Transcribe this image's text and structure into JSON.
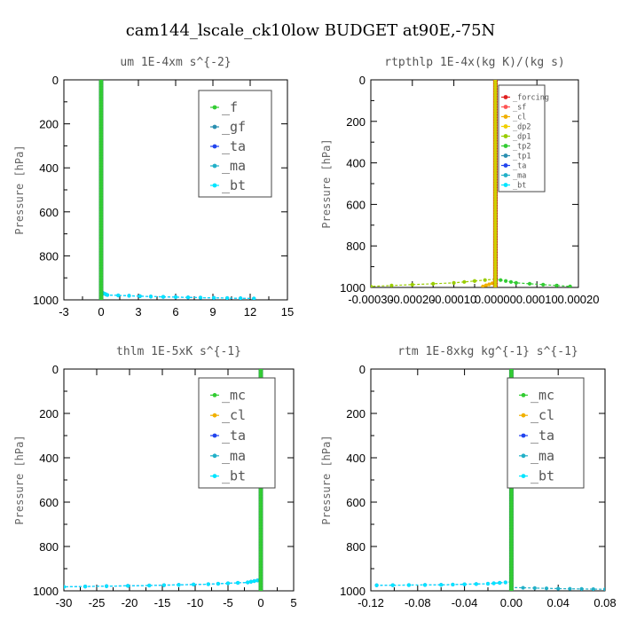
{
  "figure_title": "cam144_lscale_ck10low  BUDGET at90E,-75N",
  "colors": {
    "_f": "#33cc33",
    "_gf": "#2a8fb0",
    "_ta": "#2244ee",
    "_ma": "#22b0c8",
    "_bt": "#00e5ff",
    "_forcing": "#e02020",
    "_sf": "#ff5555",
    "_cl": "#f0b000",
    "_dp2": "#f0d000",
    "_dp1": "#99cc00",
    "_tp2": "#33cc33",
    "_tp1": "#2a8fb0",
    "_mc": "#33cc33",
    "bold_line": "#2f9c4e",
    "bold_line_red": "#b00000"
  },
  "chart_data": [
    {
      "type": "line",
      "title": "um  1E-4xm s^{-2}",
      "ylabel": "Pressure [hPa]",
      "xlim": [
        -3,
        15
      ],
      "ylim": [
        1000,
        0
      ],
      "y_reversed": true,
      "x_ticks": [
        "-3",
        "0",
        "3",
        "6",
        "9",
        "12",
        "15"
      ],
      "y_ticks": [
        "0",
        "200",
        "400",
        "600",
        "800",
        "1000"
      ],
      "legend": {
        "position": "top-right",
        "entries": [
          "_f",
          "_gf",
          "_ta",
          "_ma",
          "_bt"
        ]
      },
      "series": [
        {
          "name": "_f",
          "profile": [
            [
              0,
              0
            ],
            [
              0,
              1000
            ]
          ]
        },
        {
          "name": "_gf",
          "profile": [
            [
              0,
              0
            ],
            [
              0,
              1000
            ]
          ]
        },
        {
          "name": "_ta",
          "profile": [
            [
              0,
              0
            ],
            [
              0,
              965
            ],
            [
              0.5,
              978
            ],
            [
              4,
              985
            ],
            [
              8,
              990
            ],
            [
              12.3,
              994
            ]
          ]
        },
        {
          "name": "_ma",
          "profile": [
            [
              0,
              0
            ],
            [
              0,
              1000
            ]
          ]
        },
        {
          "name": "_bt",
          "profile": [
            [
              0,
              0
            ],
            [
              0,
              965
            ],
            [
              0.5,
              978
            ],
            [
              4,
              985
            ],
            [
              8,
              990
            ],
            [
              12.3,
              994
            ]
          ]
        }
      ]
    },
    {
      "type": "line",
      "title": "rtpthlp  1E-4x(kg K)/(kg s)",
      "ylabel": "Pressure [hPa]",
      "xlim": [
        -0.0003,
        0.0002
      ],
      "ylim": [
        1000,
        0
      ],
      "y_reversed": true,
      "x_ticks": [
        "-0.00030",
        "-0.00020",
        "-0.00010",
        "0.00000",
        "0.00010",
        "0.00020"
      ],
      "y_ticks": [
        "0",
        "200",
        "400",
        "600",
        "800",
        "1000"
      ],
      "legend": {
        "position": "top-right",
        "entries": [
          "_forcing",
          "_sf",
          "_cl",
          "_dp2",
          "_dp1",
          "_tp2",
          "_tp1",
          "_ta",
          "_ma",
          "_bt"
        ]
      },
      "series": [
        {
          "name": "_forcing",
          "profile": [
            [
              0,
              0
            ],
            [
              0,
              1000
            ]
          ]
        },
        {
          "name": "_sf",
          "profile": [
            [
              0,
              0
            ],
            [
              0,
              1000
            ]
          ]
        },
        {
          "name": "_cl",
          "profile": [
            [
              0,
              0
            ],
            [
              0,
              975
            ],
            [
              -3e-05,
              995
            ]
          ]
        },
        {
          "name": "_dp2",
          "profile": [
            [
              0,
              0
            ],
            [
              0,
              1000
            ]
          ]
        },
        {
          "name": "_dp1",
          "profile": [
            [
              0,
              0
            ],
            [
              0,
              960
            ],
            [
              -0.0001,
              978
            ],
            [
              -0.0003,
              995
            ]
          ]
        },
        {
          "name": "_tp2",
          "profile": [
            [
              0,
              0
            ],
            [
              0,
              960
            ],
            [
              5e-05,
              978
            ],
            [
              0.00018,
              995
            ]
          ]
        },
        {
          "name": "_tp1",
          "profile": [
            [
              0,
              0
            ],
            [
              0,
              1000
            ]
          ]
        },
        {
          "name": "_ta",
          "profile": [
            [
              0,
              0
            ],
            [
              0,
              1000
            ]
          ]
        },
        {
          "name": "_ma",
          "profile": [
            [
              0,
              0
            ],
            [
              0,
              1000
            ]
          ]
        },
        {
          "name": "_bt",
          "profile": [
            [
              0,
              0
            ],
            [
              0,
              1000
            ]
          ]
        }
      ]
    },
    {
      "type": "line",
      "title": "thlm  1E-5xK s^{-1}",
      "ylabel": "Pressure [hPa]",
      "xlim": [
        -30,
        5
      ],
      "ylim": [
        1000,
        0
      ],
      "y_reversed": true,
      "x_ticks": [
        "-30",
        "-25",
        "-20",
        "-15",
        "-10",
        "-5",
        "0",
        "5"
      ],
      "y_ticks": [
        "0",
        "200",
        "400",
        "600",
        "800",
        "1000"
      ],
      "legend": {
        "position": "top-right",
        "entries": [
          "_mc",
          "_cl",
          "_ta",
          "_ma",
          "_bt"
        ]
      },
      "series": [
        {
          "name": "_mc",
          "profile": [
            [
              0,
              0
            ],
            [
              0,
              1000
            ]
          ]
        },
        {
          "name": "_cl",
          "profile": [
            [
              0,
              0
            ],
            [
              0,
              1000
            ]
          ]
        },
        {
          "name": "_ta",
          "profile": [
            [
              0,
              0
            ],
            [
              0,
              950
            ],
            [
              -2,
              962
            ],
            [
              -8,
              970
            ],
            [
              -17,
              976
            ],
            [
              -30,
              982
            ]
          ]
        },
        {
          "name": "_ma",
          "profile": [
            [
              0,
              0
            ],
            [
              0,
              1000
            ]
          ]
        },
        {
          "name": "_bt",
          "profile": [
            [
              0,
              0
            ],
            [
              0,
              950
            ],
            [
              -2,
              962
            ],
            [
              -8,
              970
            ],
            [
              -17,
              976
            ],
            [
              -30,
              982
            ]
          ]
        }
      ]
    },
    {
      "type": "line",
      "title": "rtm  1E-8xkg kg^{-1} s^{-1}",
      "ylabel": "Pressure [hPa]",
      "xlim": [
        -0.12,
        0.08
      ],
      "ylim": [
        1000,
        0
      ],
      "y_reversed": true,
      "x_ticks": [
        "-0.12",
        "-0.08",
        "-0.04",
        "0.00",
        "0.04",
        "0.08"
      ],
      "y_ticks": [
        "0",
        "200",
        "400",
        "600",
        "800",
        "1000"
      ],
      "legend": {
        "position": "top-right",
        "entries": [
          "_mc",
          "_cl",
          "_ta",
          "_ma",
          "_bt"
        ]
      },
      "series": [
        {
          "name": "_mc",
          "profile": [
            [
              0,
              0
            ],
            [
              0,
              1000
            ]
          ]
        },
        {
          "name": "_cl",
          "profile": [
            [
              0,
              0
            ],
            [
              0,
              1000
            ]
          ]
        },
        {
          "name": "_ta",
          "profile": [
            [
              0,
              0
            ],
            [
              0,
              960
            ],
            [
              -0.02,
              968
            ],
            [
              -0.06,
              973
            ],
            [
              -0.115,
              975
            ]
          ]
        },
        {
          "name": "_ma",
          "profile": [
            [
              0,
              0
            ],
            [
              0,
              985
            ],
            [
              0.04,
              990
            ],
            [
              0.08,
              993
            ]
          ]
        },
        {
          "name": "_bt",
          "profile": [
            [
              0,
              0
            ],
            [
              0,
              960
            ],
            [
              -0.02,
              968
            ],
            [
              -0.06,
              973
            ],
            [
              -0.115,
              975
            ]
          ]
        }
      ]
    }
  ]
}
